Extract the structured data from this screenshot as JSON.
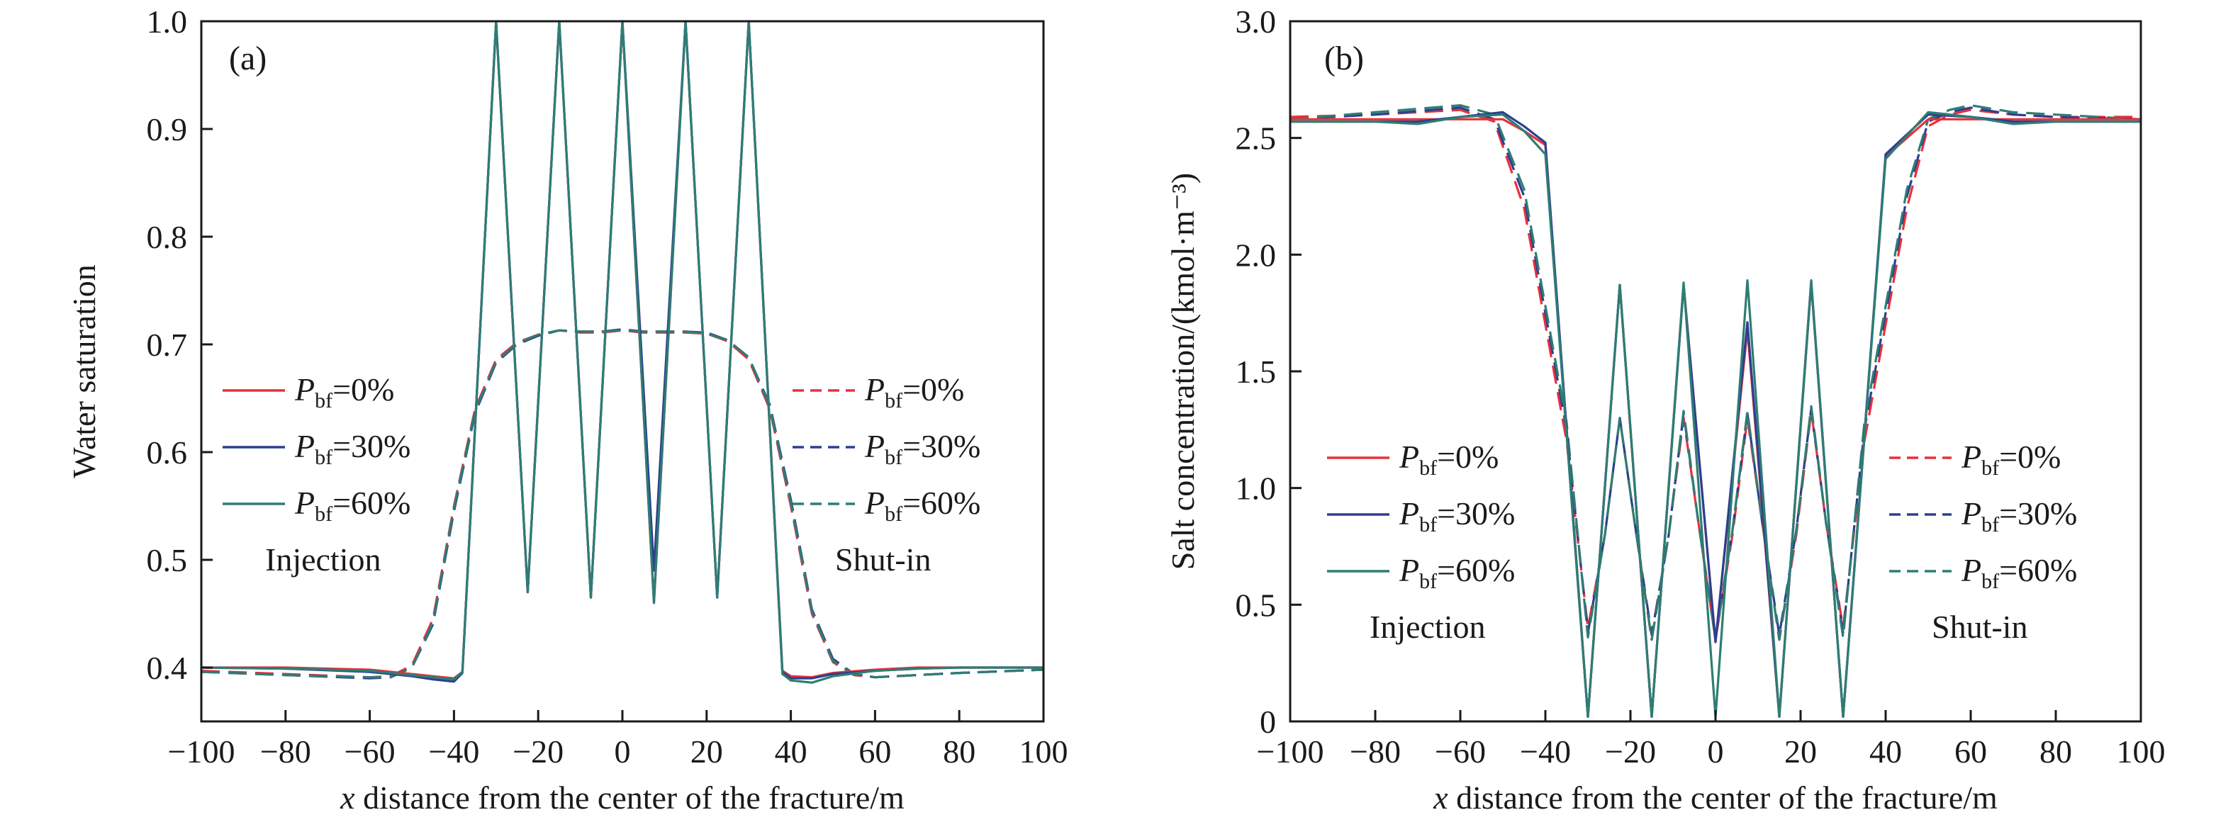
{
  "chart_data": [
    {
      "type": "line",
      "panel_label": "(a)",
      "xlabel": "distance from the center of the fracture/m",
      "xlabel_var": "x",
      "ylabel": "Water saturation",
      "xlim": [
        -100,
        100
      ],
      "ylim": [
        0.35,
        1.0
      ],
      "xticks": [
        -100,
        -80,
        -60,
        -40,
        -20,
        0,
        20,
        40,
        60,
        80,
        100
      ],
      "yticks": [
        0.4,
        0.5,
        0.6,
        0.7,
        0.8,
        0.9,
        1.0
      ],
      "ytick_labels": [
        "0.4",
        "0.5",
        "0.6",
        "0.7",
        "0.8",
        "0.9",
        "1.0"
      ],
      "grid": false,
      "legends": [
        {
          "placement": "left-middle",
          "note": "Injection",
          "style": "solid",
          "entries": [
            {
              "main": "P",
              "sub": "bf",
              "value": "=0%",
              "color": "#e8313a"
            },
            {
              "main": "P",
              "sub": "bf",
              "value": "=30%",
              "color": "#2d3f8e"
            },
            {
              "main": "P",
              "sub": "bf",
              "value": "=60%",
              "color": "#2e7d74"
            }
          ]
        },
        {
          "placement": "right-middle",
          "note": "Shut-in",
          "style": "dashed",
          "entries": [
            {
              "main": "P",
              "sub": "bf",
              "value": "=0%",
              "color": "#e8313a"
            },
            {
              "main": "P",
              "sub": "bf",
              "value": "=30%",
              "color": "#2d3f8e"
            },
            {
              "main": "P",
              "sub": "bf",
              "value": "=60%",
              "color": "#2e7d74"
            }
          ]
        }
      ],
      "series": [
        {
          "group": "Injection",
          "color": "#e8313a",
          "dash": false,
          "x": [
            -100,
            -80,
            -60,
            -50,
            -45,
            -40,
            -38,
            -30,
            -22.5,
            -15,
            -7.5,
            0,
            7.5,
            15,
            22.5,
            30,
            38,
            40,
            45,
            50,
            60,
            70,
            80,
            100
          ],
          "y": [
            0.4,
            0.4,
            0.398,
            0.394,
            0.392,
            0.39,
            0.396,
            1.0,
            0.47,
            1.0,
            0.465,
            1.0,
            0.46,
            1.0,
            0.465,
            1.0,
            0.397,
            0.392,
            0.391,
            0.395,
            0.398,
            0.4,
            0.4,
            0.4
          ]
        },
        {
          "group": "Injection",
          "color": "#2d3f8e",
          "dash": false,
          "x": [
            -100,
            -80,
            -60,
            -50,
            -45,
            -40,
            -38,
            -30,
            -22.5,
            -15,
            -7.5,
            0,
            7.5,
            15,
            22.5,
            30,
            38,
            40,
            45,
            50,
            60,
            70,
            80,
            100
          ],
          "y": [
            0.4,
            0.399,
            0.396,
            0.392,
            0.389,
            0.387,
            0.395,
            1.0,
            0.47,
            1.0,
            0.465,
            1.0,
            0.49,
            1.0,
            0.465,
            1.0,
            0.396,
            0.39,
            0.39,
            0.394,
            0.397,
            0.399,
            0.4,
            0.4
          ]
        },
        {
          "group": "Injection",
          "color": "#2e7d74",
          "dash": false,
          "x": [
            -100,
            -80,
            -60,
            -50,
            -45,
            -40,
            -38,
            -30,
            -22.5,
            -15,
            -7.5,
            0,
            7.5,
            15,
            22.5,
            30,
            38,
            40,
            45,
            50,
            60,
            70,
            80,
            100
          ],
          "y": [
            0.4,
            0.399,
            0.397,
            0.393,
            0.391,
            0.389,
            0.396,
            1.0,
            0.47,
            1.0,
            0.465,
            1.0,
            0.46,
            1.0,
            0.465,
            1.0,
            0.394,
            0.388,
            0.386,
            0.392,
            0.397,
            0.399,
            0.4,
            0.4
          ]
        },
        {
          "group": "Shut-in",
          "color": "#e8313a",
          "dash": true,
          "x": [
            -100,
            -80,
            -60,
            -55,
            -50,
            -45,
            -40,
            -35,
            -30,
            -25,
            -20,
            -15,
            -10,
            -5,
            0,
            5,
            10,
            15,
            20,
            25,
            30,
            35,
            40,
            45,
            50,
            55,
            60,
            70,
            80,
            100
          ],
          "y": [
            0.397,
            0.394,
            0.391,
            0.392,
            0.402,
            0.445,
            0.55,
            0.64,
            0.686,
            0.702,
            0.709,
            0.713,
            0.711,
            0.711,
            0.713,
            0.711,
            0.711,
            0.711,
            0.71,
            0.703,
            0.686,
            0.64,
            0.55,
            0.45,
            0.405,
            0.393,
            0.391,
            0.393,
            0.395,
            0.398
          ]
        },
        {
          "group": "Shut-in",
          "color": "#2d3f8e",
          "dash": true,
          "x": [
            -100,
            -80,
            -60,
            -55,
            -50,
            -45,
            -40,
            -35,
            -30,
            -25,
            -20,
            -15,
            -10,
            -5,
            0,
            5,
            10,
            15,
            20,
            25,
            30,
            35,
            40,
            45,
            50,
            55,
            60,
            70,
            80,
            100
          ],
          "y": [
            0.396,
            0.393,
            0.39,
            0.391,
            0.4,
            0.44,
            0.545,
            0.636,
            0.683,
            0.7,
            0.708,
            0.713,
            0.712,
            0.712,
            0.714,
            0.712,
            0.712,
            0.712,
            0.711,
            0.704,
            0.688,
            0.644,
            0.556,
            0.454,
            0.408,
            0.394,
            0.391,
            0.393,
            0.395,
            0.398
          ]
        },
        {
          "group": "Shut-in",
          "color": "#2e7d74",
          "dash": true,
          "x": [
            -100,
            -80,
            -60,
            -55,
            -50,
            -45,
            -40,
            -35,
            -30,
            -25,
            -20,
            -15,
            -10,
            -5,
            0,
            5,
            10,
            15,
            20,
            25,
            30,
            35,
            40,
            45,
            50,
            55,
            60,
            70,
            80,
            100
          ],
          "y": [
            0.396,
            0.393,
            0.391,
            0.391,
            0.4,
            0.442,
            0.548,
            0.638,
            0.684,
            0.701,
            0.709,
            0.713,
            0.712,
            0.712,
            0.713,
            0.712,
            0.712,
            0.712,
            0.71,
            0.704,
            0.688,
            0.642,
            0.553,
            0.452,
            0.406,
            0.394,
            0.391,
            0.393,
            0.395,
            0.398
          ]
        }
      ]
    },
    {
      "type": "line",
      "panel_label": "(b)",
      "xlabel": "distance from the center of the fracture/m",
      "xlabel_var": "x",
      "ylabel": "Salt concentration/(kmol·m⁻³)",
      "xlim": [
        -100,
        100
      ],
      "ylim": [
        0,
        3.0
      ],
      "xticks": [
        -100,
        -80,
        -60,
        -40,
        -20,
        0,
        20,
        40,
        60,
        80,
        100
      ],
      "yticks": [
        0,
        0.5,
        1.0,
        1.5,
        2.0,
        2.5,
        3.0
      ],
      "ytick_labels": [
        "0",
        "0.5",
        "1.0",
        "1.5",
        "2.0",
        "2.5",
        "3.0"
      ],
      "grid": false,
      "legends": [
        {
          "placement": "left-middle",
          "note": "Injection",
          "style": "solid",
          "entries": [
            {
              "main": "P",
              "sub": "bf",
              "value": "=0%",
              "color": "#e8313a"
            },
            {
              "main": "P",
              "sub": "bf",
              "value": "=30%",
              "color": "#2d3f8e"
            },
            {
              "main": "P",
              "sub": "bf",
              "value": "=60%",
              "color": "#2e7d74"
            }
          ]
        },
        {
          "placement": "right-middle",
          "note": "Shut-in",
          "style": "dashed",
          "entries": [
            {
              "main": "P",
              "sub": "bf",
              "value": "=0%",
              "color": "#e8313a"
            },
            {
              "main": "P",
              "sub": "bf",
              "value": "=30%",
              "color": "#2d3f8e"
            },
            {
              "main": "P",
              "sub": "bf",
              "value": "=60%",
              "color": "#2e7d74"
            }
          ]
        }
      ],
      "series": [
        {
          "group": "Injection",
          "color": "#e8313a",
          "dash": false,
          "x": [
            -100,
            -80,
            -70,
            -60,
            -50,
            -45,
            -40,
            -30,
            -22.5,
            -15,
            -7.5,
            0,
            7.5,
            15,
            22.5,
            30,
            40,
            50,
            60,
            70,
            80,
            100
          ],
          "y": [
            2.58,
            2.58,
            2.58,
            2.58,
            2.58,
            2.53,
            2.47,
            0.02,
            1.87,
            0.02,
            1.87,
            0.34,
            1.68,
            0.02,
            1.88,
            0.02,
            2.42,
            2.58,
            2.58,
            2.58,
            2.58,
            2.58
          ]
        },
        {
          "group": "Injection",
          "color": "#2d3f8e",
          "dash": false,
          "x": [
            -100,
            -80,
            -70,
            -60,
            -50,
            -45,
            -40,
            -30,
            -22.5,
            -15,
            -7.5,
            0,
            7.5,
            15,
            22.5,
            30,
            40,
            50,
            60,
            70,
            80,
            100
          ],
          "y": [
            2.57,
            2.57,
            2.57,
            2.59,
            2.61,
            2.55,
            2.48,
            0.02,
            1.87,
            0.02,
            1.87,
            0.34,
            1.71,
            0.02,
            1.88,
            0.02,
            2.43,
            2.6,
            2.59,
            2.57,
            2.57,
            2.57
          ]
        },
        {
          "group": "Injection",
          "color": "#2e7d74",
          "dash": false,
          "x": [
            -100,
            -80,
            -70,
            -60,
            -50,
            -45,
            -40,
            -30,
            -22.5,
            -15,
            -7.5,
            0,
            7.5,
            15,
            22.5,
            30,
            40,
            50,
            60,
            70,
            80,
            100
          ],
          "y": [
            2.57,
            2.57,
            2.56,
            2.59,
            2.6,
            2.53,
            2.43,
            0.02,
            1.87,
            0.02,
            1.88,
            0.02,
            1.89,
            0.02,
            1.89,
            0.02,
            2.41,
            2.61,
            2.59,
            2.56,
            2.57,
            2.57
          ]
        },
        {
          "group": "Shut-in",
          "color": "#e8313a",
          "dash": true,
          "x": [
            -100,
            -80,
            -60,
            -52,
            -45,
            -40,
            -35,
            -30,
            -26,
            -22.5,
            -19,
            -15,
            -11,
            -7.5,
            -4,
            0,
            4,
            7.5,
            11,
            15,
            19,
            22.5,
            26,
            30,
            35,
            40,
            45,
            50,
            55,
            60,
            70,
            80,
            100
          ],
          "y": [
            2.59,
            2.6,
            2.62,
            2.57,
            2.2,
            1.7,
            1.2,
            0.4,
            0.8,
            1.3,
            0.85,
            0.35,
            0.8,
            1.3,
            0.85,
            0.35,
            0.8,
            1.3,
            0.85,
            0.35,
            0.8,
            1.33,
            0.85,
            0.4,
            1.2,
            1.7,
            2.2,
            2.55,
            2.6,
            2.62,
            2.6,
            2.59,
            2.59
          ]
        },
        {
          "group": "Shut-in",
          "color": "#2d3f8e",
          "dash": true,
          "x": [
            -100,
            -80,
            -60,
            -52,
            -45,
            -40,
            -35,
            -30,
            -26,
            -22.5,
            -19,
            -15,
            -11,
            -7.5,
            -4,
            0,
            4,
            7.5,
            11,
            15,
            19,
            22.5,
            26,
            30,
            35,
            40,
            45,
            50,
            55,
            60,
            70,
            80,
            100
          ],
          "y": [
            2.58,
            2.6,
            2.63,
            2.58,
            2.25,
            1.75,
            1.25,
            0.38,
            0.8,
            1.3,
            0.85,
            0.37,
            0.8,
            1.32,
            0.85,
            0.36,
            0.82,
            1.32,
            0.85,
            0.37,
            0.82,
            1.34,
            0.85,
            0.38,
            1.25,
            1.75,
            2.25,
            2.57,
            2.61,
            2.63,
            2.6,
            2.59,
            2.58
          ]
        },
        {
          "group": "Shut-in",
          "color": "#2e7d74",
          "dash": true,
          "x": [
            -100,
            -80,
            -60,
            -52,
            -45,
            -40,
            -35,
            -30,
            -26,
            -22.5,
            -19,
            -15,
            -11,
            -7.5,
            -4,
            0,
            4,
            7.5,
            11,
            15,
            19,
            22.5,
            26,
            30,
            35,
            40,
            45,
            50,
            55,
            60,
            70,
            80,
            100
          ],
          "y": [
            2.58,
            2.61,
            2.64,
            2.6,
            2.28,
            1.78,
            1.28,
            0.36,
            0.8,
            1.3,
            0.85,
            0.35,
            0.8,
            1.33,
            0.85,
            0.35,
            0.82,
            1.33,
            0.85,
            0.35,
            0.82,
            1.35,
            0.85,
            0.36,
            1.28,
            1.78,
            2.28,
            2.58,
            2.62,
            2.64,
            2.61,
            2.6,
            2.58
          ]
        }
      ]
    }
  ]
}
